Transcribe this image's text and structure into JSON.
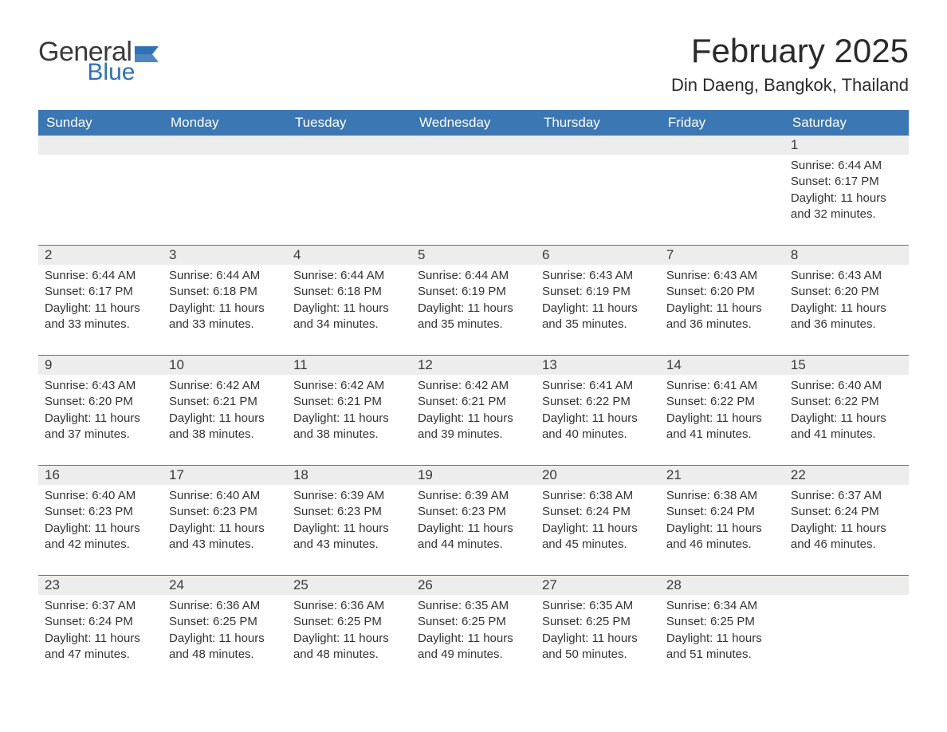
{
  "brand": {
    "word1": "General",
    "word2": "Blue",
    "text_color": "#3a3a3a",
    "accent_color": "#2f72b3",
    "flag_color": "#2f72b3"
  },
  "title": "February 2025",
  "subtitle": "Din Daeng, Bangkok, Thailand",
  "colors": {
    "header_bg": "#3a77b3",
    "header_text": "#ffffff",
    "daynum_bg": "#ededed",
    "rule": "#3a77b3",
    "body_text": "#333333",
    "page_bg": "#ffffff"
  },
  "day_headers": [
    "Sunday",
    "Monday",
    "Tuesday",
    "Wednesday",
    "Thursday",
    "Friday",
    "Saturday"
  ],
  "weeks": [
    [
      null,
      null,
      null,
      null,
      null,
      null,
      {
        "day": "1",
        "sunrise": "Sunrise: 6:44 AM",
        "sunset": "Sunset: 6:17 PM",
        "daylight1": "Daylight: 11 hours",
        "daylight2": "and 32 minutes."
      }
    ],
    [
      {
        "day": "2",
        "sunrise": "Sunrise: 6:44 AM",
        "sunset": "Sunset: 6:17 PM",
        "daylight1": "Daylight: 11 hours",
        "daylight2": "and 33 minutes."
      },
      {
        "day": "3",
        "sunrise": "Sunrise: 6:44 AM",
        "sunset": "Sunset: 6:18 PM",
        "daylight1": "Daylight: 11 hours",
        "daylight2": "and 33 minutes."
      },
      {
        "day": "4",
        "sunrise": "Sunrise: 6:44 AM",
        "sunset": "Sunset: 6:18 PM",
        "daylight1": "Daylight: 11 hours",
        "daylight2": "and 34 minutes."
      },
      {
        "day": "5",
        "sunrise": "Sunrise: 6:44 AM",
        "sunset": "Sunset: 6:19 PM",
        "daylight1": "Daylight: 11 hours",
        "daylight2": "and 35 minutes."
      },
      {
        "day": "6",
        "sunrise": "Sunrise: 6:43 AM",
        "sunset": "Sunset: 6:19 PM",
        "daylight1": "Daylight: 11 hours",
        "daylight2": "and 35 minutes."
      },
      {
        "day": "7",
        "sunrise": "Sunrise: 6:43 AM",
        "sunset": "Sunset: 6:20 PM",
        "daylight1": "Daylight: 11 hours",
        "daylight2": "and 36 minutes."
      },
      {
        "day": "8",
        "sunrise": "Sunrise: 6:43 AM",
        "sunset": "Sunset: 6:20 PM",
        "daylight1": "Daylight: 11 hours",
        "daylight2": "and 36 minutes."
      }
    ],
    [
      {
        "day": "9",
        "sunrise": "Sunrise: 6:43 AM",
        "sunset": "Sunset: 6:20 PM",
        "daylight1": "Daylight: 11 hours",
        "daylight2": "and 37 minutes."
      },
      {
        "day": "10",
        "sunrise": "Sunrise: 6:42 AM",
        "sunset": "Sunset: 6:21 PM",
        "daylight1": "Daylight: 11 hours",
        "daylight2": "and 38 minutes."
      },
      {
        "day": "11",
        "sunrise": "Sunrise: 6:42 AM",
        "sunset": "Sunset: 6:21 PM",
        "daylight1": "Daylight: 11 hours",
        "daylight2": "and 38 minutes."
      },
      {
        "day": "12",
        "sunrise": "Sunrise: 6:42 AM",
        "sunset": "Sunset: 6:21 PM",
        "daylight1": "Daylight: 11 hours",
        "daylight2": "and 39 minutes."
      },
      {
        "day": "13",
        "sunrise": "Sunrise: 6:41 AM",
        "sunset": "Sunset: 6:22 PM",
        "daylight1": "Daylight: 11 hours",
        "daylight2": "and 40 minutes."
      },
      {
        "day": "14",
        "sunrise": "Sunrise: 6:41 AM",
        "sunset": "Sunset: 6:22 PM",
        "daylight1": "Daylight: 11 hours",
        "daylight2": "and 41 minutes."
      },
      {
        "day": "15",
        "sunrise": "Sunrise: 6:40 AM",
        "sunset": "Sunset: 6:22 PM",
        "daylight1": "Daylight: 11 hours",
        "daylight2": "and 41 minutes."
      }
    ],
    [
      {
        "day": "16",
        "sunrise": "Sunrise: 6:40 AM",
        "sunset": "Sunset: 6:23 PM",
        "daylight1": "Daylight: 11 hours",
        "daylight2": "and 42 minutes."
      },
      {
        "day": "17",
        "sunrise": "Sunrise: 6:40 AM",
        "sunset": "Sunset: 6:23 PM",
        "daylight1": "Daylight: 11 hours",
        "daylight2": "and 43 minutes."
      },
      {
        "day": "18",
        "sunrise": "Sunrise: 6:39 AM",
        "sunset": "Sunset: 6:23 PM",
        "daylight1": "Daylight: 11 hours",
        "daylight2": "and 43 minutes."
      },
      {
        "day": "19",
        "sunrise": "Sunrise: 6:39 AM",
        "sunset": "Sunset: 6:23 PM",
        "daylight1": "Daylight: 11 hours",
        "daylight2": "and 44 minutes."
      },
      {
        "day": "20",
        "sunrise": "Sunrise: 6:38 AM",
        "sunset": "Sunset: 6:24 PM",
        "daylight1": "Daylight: 11 hours",
        "daylight2": "and 45 minutes."
      },
      {
        "day": "21",
        "sunrise": "Sunrise: 6:38 AM",
        "sunset": "Sunset: 6:24 PM",
        "daylight1": "Daylight: 11 hours",
        "daylight2": "and 46 minutes."
      },
      {
        "day": "22",
        "sunrise": "Sunrise: 6:37 AM",
        "sunset": "Sunset: 6:24 PM",
        "daylight1": "Daylight: 11 hours",
        "daylight2": "and 46 minutes."
      }
    ],
    [
      {
        "day": "23",
        "sunrise": "Sunrise: 6:37 AM",
        "sunset": "Sunset: 6:24 PM",
        "daylight1": "Daylight: 11 hours",
        "daylight2": "and 47 minutes."
      },
      {
        "day": "24",
        "sunrise": "Sunrise: 6:36 AM",
        "sunset": "Sunset: 6:25 PM",
        "daylight1": "Daylight: 11 hours",
        "daylight2": "and 48 minutes."
      },
      {
        "day": "25",
        "sunrise": "Sunrise: 6:36 AM",
        "sunset": "Sunset: 6:25 PM",
        "daylight1": "Daylight: 11 hours",
        "daylight2": "and 48 minutes."
      },
      {
        "day": "26",
        "sunrise": "Sunrise: 6:35 AM",
        "sunset": "Sunset: 6:25 PM",
        "daylight1": "Daylight: 11 hours",
        "daylight2": "and 49 minutes."
      },
      {
        "day": "27",
        "sunrise": "Sunrise: 6:35 AM",
        "sunset": "Sunset: 6:25 PM",
        "daylight1": "Daylight: 11 hours",
        "daylight2": "and 50 minutes."
      },
      {
        "day": "28",
        "sunrise": "Sunrise: 6:34 AM",
        "sunset": "Sunset: 6:25 PM",
        "daylight1": "Daylight: 11 hours",
        "daylight2": "and 51 minutes."
      },
      null
    ]
  ]
}
